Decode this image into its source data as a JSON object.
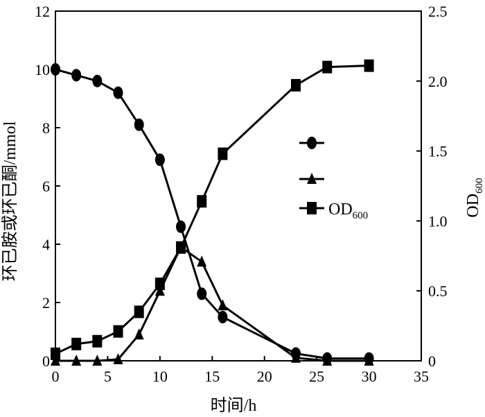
{
  "chart_data": {
    "type": "line",
    "xlabel": "时间/h",
    "ylabel_left": "环已胺或环已酮/mmol",
    "ylabel_right": "OD",
    "ylabel_right_sub": "600",
    "x_range": [
      0,
      35
    ],
    "x_ticks": [
      "0",
      "5",
      "10",
      "15",
      "20",
      "25",
      "30",
      "35"
    ],
    "y_left_range": [
      0,
      12
    ],
    "y_left_ticks": [
      "0",
      "2",
      "4",
      "6",
      "8",
      "10",
      "12"
    ],
    "y_right_range": [
      0,
      2.5
    ],
    "y_right_ticks": [
      "0",
      "0.5",
      "1.0",
      "1.5",
      "2.0",
      "2.5"
    ],
    "grid": false,
    "legend_position": "middle-right",
    "series": [
      {
        "marker": "circle",
        "axis": "left",
        "points": [
          [
            0,
            10.0
          ],
          [
            2,
            9.8
          ],
          [
            4,
            9.6
          ],
          [
            6,
            9.2
          ],
          [
            8,
            8.1
          ],
          [
            10,
            6.9
          ],
          [
            12,
            4.6
          ],
          [
            14,
            2.3
          ],
          [
            16,
            1.5
          ],
          [
            23,
            0.25
          ],
          [
            26,
            0.08
          ],
          [
            30,
            0.08
          ]
        ]
      },
      {
        "marker": "triangle",
        "axis": "left",
        "points": [
          [
            0,
            0.0
          ],
          [
            2,
            0.0
          ],
          [
            4,
            0.0
          ],
          [
            6,
            0.05
          ],
          [
            8,
            0.9
          ],
          [
            10,
            2.4
          ],
          [
            12,
            3.9
          ],
          [
            14,
            3.4
          ],
          [
            16,
            1.9
          ],
          [
            23,
            0.1
          ],
          [
            26,
            0.0
          ],
          [
            30,
            0.0
          ]
        ]
      },
      {
        "name": "OD",
        "name_sub": "600",
        "marker": "square",
        "axis": "right",
        "points": [
          [
            0,
            0.05
          ],
          [
            2,
            0.12
          ],
          [
            4,
            0.14
          ],
          [
            6,
            0.21
          ],
          [
            8,
            0.35
          ],
          [
            10,
            0.55
          ],
          [
            12,
            0.81
          ],
          [
            14,
            1.14
          ],
          [
            16,
            1.48
          ],
          [
            23,
            1.97
          ],
          [
            26,
            2.1
          ],
          [
            30,
            2.11
          ]
        ]
      }
    ]
  }
}
